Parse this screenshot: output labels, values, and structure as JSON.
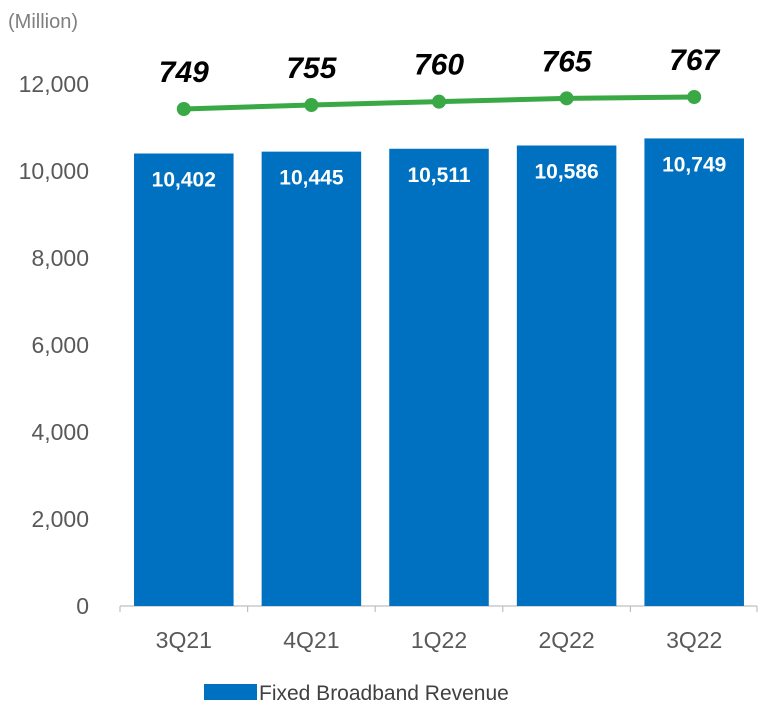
{
  "chart_data": {
    "type": "bar",
    "title": "",
    "unit_label": "(Million)",
    "xlabel": "",
    "ylabel": "",
    "categories": [
      "3Q21",
      "4Q21",
      "1Q22",
      "2Q22",
      "3Q22"
    ],
    "ylim": [
      0,
      12000
    ],
    "yticks": [
      0,
      2000,
      4000,
      6000,
      8000,
      10000,
      12000
    ],
    "ytick_labels": [
      "0",
      "2,000",
      "4,000",
      "6,000",
      "8,000",
      "10,000",
      "12,000"
    ],
    "grid": false,
    "series": [
      {
        "name": "Fixed Broadband Revenue",
        "type": "bar",
        "color": "#0070C0",
        "values": [
          10402,
          10445,
          10511,
          10586,
          10749
        ],
        "labels": [
          "10,402",
          "10,445",
          "10,511",
          "10,586",
          "10,749"
        ]
      },
      {
        "type": "line",
        "color": "#3AA845",
        "values": [
          749,
          755,
          760,
          765,
          767
        ],
        "labels": [
          "749",
          "755",
          "760",
          "765",
          "767"
        ]
      }
    ],
    "legend": {
      "position": "bottom",
      "entries": [
        "Fixed Broadband Revenue"
      ]
    }
  }
}
